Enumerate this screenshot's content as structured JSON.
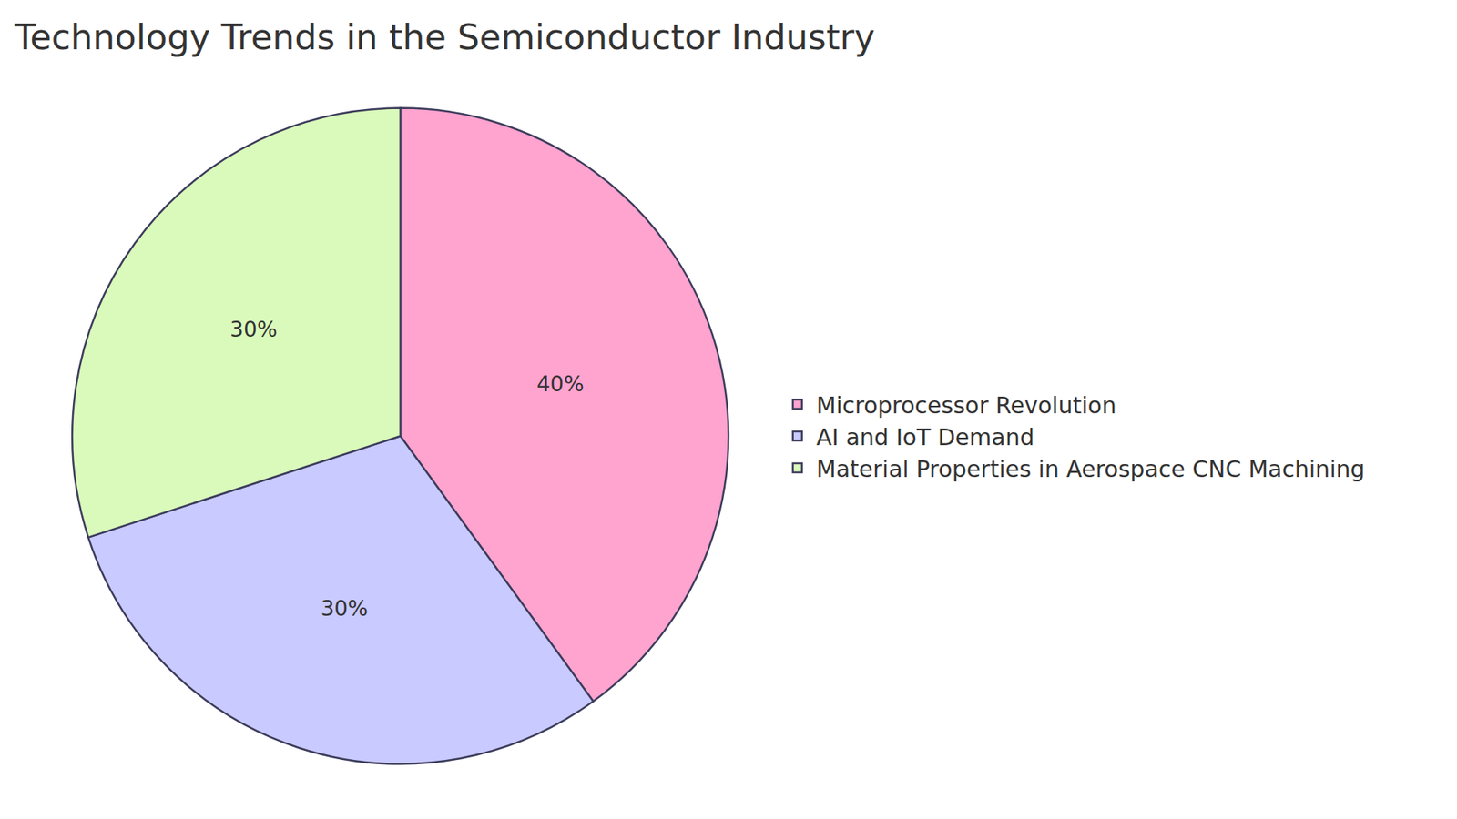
{
  "chart_data": {
    "type": "pie",
    "title": "Technology Trends in the Semiconductor Industry",
    "categories": [
      "Microprocessor Revolution",
      "AI and IoT Demand",
      "Material Properties in Aerospace CNC Machining"
    ],
    "values": [
      40,
      30,
      30
    ],
    "value_labels": [
      "40%",
      "30%",
      "30%"
    ],
    "colors": [
      "#ffa3cf",
      "#c9caff",
      "#dafabb"
    ],
    "data_labels": true,
    "legend": "right"
  }
}
